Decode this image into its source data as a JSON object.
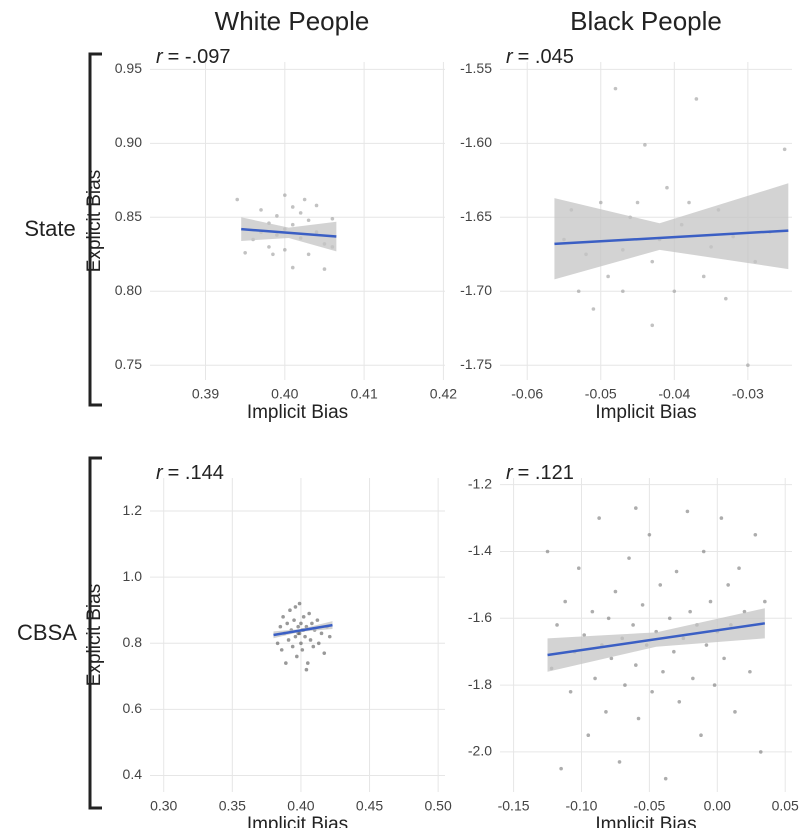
{
  "column_titles": [
    "White People",
    "Black People"
  ],
  "row_labels": [
    "State",
    "CBSA"
  ],
  "chart_data": [
    {
      "type": "scatter",
      "annotation_symbol": "r",
      "annotation": "= -.097",
      "x_label": "Implicit Bias",
      "y_label": "Explicit Bias",
      "xlim": [
        0.383,
        0.4202
      ],
      "ylim": [
        0.74,
        0.955
      ],
      "xticks": [
        0.39,
        {
          "value": 0.4,
          "label": "0.40"
        },
        0.41,
        0.42
      ],
      "yticks": [
        0.75,
        {
          "value": 0.8,
          "label": "0.80"
        },
        0.85,
        {
          "value": 0.9,
          "label": "0.90"
        },
        0.95
      ],
      "grid": true,
      "point_color": "#9a9a9a",
      "x": [
        0.395,
        0.396,
        0.397,
        0.398,
        0.398,
        0.399,
        0.399,
        0.4,
        0.4,
        0.4,
        0.401,
        0.401,
        0.402,
        0.402,
        0.403,
        0.403,
        0.404,
        0.404,
        0.405,
        0.405,
        0.406,
        0.406,
        0.394,
        0.397,
        0.401,
        0.4025,
        0.3985
      ],
      "y": [
        0.826,
        0.835,
        0.84,
        0.83,
        0.846,
        0.851,
        0.838,
        0.865,
        0.842,
        0.828,
        0.857,
        0.845,
        0.836,
        0.853,
        0.848,
        0.825,
        0.858,
        0.84,
        0.815,
        0.832,
        0.849,
        0.83,
        0.862,
        0.855,
        0.816,
        0.862,
        0.825
      ],
      "fit": {
        "color": "#3b5fc4",
        "x": [
          0.3945,
          0.4065
        ],
        "y": [
          0.842,
          0.837
        ]
      },
      "band": {
        "color": "#c4c4c4",
        "x": [
          0.3945,
          0.4005,
          0.4065
        ],
        "lower": [
          0.834,
          0.836,
          0.827
        ],
        "upper": [
          0.85,
          0.843,
          0.847
        ]
      }
    },
    {
      "type": "scatter",
      "annotation_symbol": "r",
      "annotation": "= .045",
      "x_label": "Implicit Bias",
      "xlim": [
        -0.0637,
        -0.024
      ],
      "ylim": [
        -1.76,
        -1.545
      ],
      "xticks": [
        -0.06,
        -0.05,
        -0.04,
        -0.03
      ],
      "yticks": [
        -1.75,
        {
          "value": -1.7,
          "label": "-1.70"
        },
        -1.65,
        {
          "value": -1.6,
          "label": "-1.60"
        },
        -1.55
      ],
      "grid": true,
      "point_color": "#9a9a9a",
      "x": [
        -0.055,
        -0.053,
        -0.052,
        -0.051,
        -0.05,
        -0.049,
        -0.048,
        -0.047,
        -0.046,
        -0.045,
        -0.044,
        -0.043,
        -0.043,
        -0.042,
        -0.041,
        -0.04,
        -0.039,
        -0.038,
        -0.037,
        -0.036,
        -0.035,
        -0.034,
        -0.033,
        -0.032,
        -0.03,
        -0.029,
        -0.027,
        -0.025,
        -0.054,
        -0.047
      ],
      "y": [
        -1.665,
        -1.7,
        -1.675,
        -1.712,
        -1.64,
        -1.69,
        -1.563,
        -1.672,
        -1.65,
        -1.64,
        -1.601,
        -1.68,
        -1.723,
        -1.665,
        -1.63,
        -1.7,
        -1.655,
        -1.64,
        -1.57,
        -1.69,
        -1.67,
        -1.645,
        -1.705,
        -1.663,
        -1.75,
        -1.68,
        -1.66,
        -1.604,
        -1.645,
        -1.7
      ],
      "fit": {
        "color": "#3b5fc4",
        "x": [
          -0.0563,
          -0.0245
        ],
        "y": [
          -1.668,
          -1.659
        ]
      },
      "band": {
        "color": "#c4c4c4",
        "x": [
          -0.0563,
          -0.042,
          -0.0245
        ],
        "lower": [
          -1.692,
          -1.672,
          -1.685
        ],
        "upper": [
          -1.637,
          -1.654,
          -1.627
        ]
      }
    },
    {
      "type": "scatter",
      "annotation_symbol": "r",
      "annotation": "= .144",
      "x_label": "Implicit Bias",
      "y_label": "Explicit Bias",
      "xlim": [
        0.29,
        0.505
      ],
      "ylim": [
        0.35,
        1.3
      ],
      "xticks": [
        {
          "value": 0.3,
          "label": "0.30"
        },
        0.35,
        {
          "value": 0.4,
          "label": "0.40"
        },
        0.45,
        {
          "value": 0.5,
          "label": "0.50"
        }
      ],
      "yticks": [
        0.4,
        0.6,
        0.8,
        {
          "value": 1,
          "label": "1.0"
        },
        1.2
      ],
      "grid": true,
      "point_color": "#555555",
      "x": [
        0.383,
        0.385,
        0.386,
        0.387,
        0.388,
        0.389,
        0.39,
        0.391,
        0.392,
        0.393,
        0.394,
        0.395,
        0.396,
        0.397,
        0.398,
        0.399,
        0.399,
        0.4,
        0.4,
        0.401,
        0.401,
        0.402,
        0.403,
        0.404,
        0.405,
        0.406,
        0.407,
        0.408,
        0.409,
        0.41,
        0.412,
        0.413,
        0.415,
        0.417,
        0.419,
        0.421,
        0.396,
        0.404,
        0.398,
        0.402
      ],
      "y": [
        0.8,
        0.85,
        0.78,
        0.88,
        0.83,
        0.74,
        0.86,
        0.81,
        0.9,
        0.84,
        0.79,
        0.87,
        0.82,
        0.76,
        0.85,
        0.92,
        0.83,
        0.8,
        0.86,
        0.84,
        0.78,
        0.88,
        0.82,
        0.85,
        0.74,
        0.89,
        0.81,
        0.86,
        0.79,
        0.84,
        0.87,
        0.8,
        0.83,
        0.77,
        0.85,
        0.82,
        0.91,
        0.72,
        0.83,
        0.84
      ],
      "fit": {
        "color": "#3b5fc4",
        "x": [
          0.38,
          0.423
        ],
        "y": [
          0.825,
          0.855
        ]
      },
      "band": {
        "color": "#c4c4c4",
        "x": [
          0.38,
          0.4,
          0.423
        ],
        "lower": [
          0.815,
          0.835,
          0.843
        ],
        "upper": [
          0.836,
          0.843,
          0.867
        ]
      }
    },
    {
      "type": "scatter",
      "annotation_symbol": "r",
      "annotation": "= .121",
      "x_label": "Implicit Bias",
      "xlim": [
        -0.16,
        0.055
      ],
      "ylim": [
        -2.12,
        -1.18
      ],
      "xticks": [
        -0.15,
        {
          "value": -0.1,
          "label": "-0.10"
        },
        -0.05,
        {
          "value": 0,
          "label": "0.00"
        },
        0.05
      ],
      "yticks": [
        {
          "value": -2,
          "label": "-2.0"
        },
        -1.8,
        -1.6,
        -1.4,
        -1.2
      ],
      "grid": true,
      "point_color": "#777777",
      "x": [
        -0.125,
        -0.122,
        -0.118,
        -0.115,
        -0.112,
        -0.108,
        -0.105,
        -0.102,
        -0.098,
        -0.095,
        -0.092,
        -0.09,
        -0.087,
        -0.085,
        -0.082,
        -0.08,
        -0.078,
        -0.075,
        -0.072,
        -0.07,
        -0.068,
        -0.065,
        -0.062,
        -0.06,
        -0.058,
        -0.055,
        -0.052,
        -0.05,
        -0.048,
        -0.045,
        -0.042,
        -0.04,
        -0.038,
        -0.035,
        -0.032,
        -0.03,
        -0.028,
        -0.025,
        -0.022,
        -0.02,
        -0.018,
        -0.015,
        -0.012,
        -0.01,
        -0.008,
        -0.005,
        -0.002,
        0,
        0.003,
        0.005,
        0.008,
        0.01,
        0.013,
        0.016,
        0.02,
        0.024,
        0.028,
        0.032,
        0.035,
        -0.06
      ],
      "y": [
        -1.4,
        -1.75,
        -1.62,
        -2.05,
        -1.55,
        -1.82,
        -1.7,
        -1.45,
        -1.65,
        -1.95,
        -1.58,
        -1.78,
        -1.3,
        -1.68,
        -1.88,
        -1.6,
        -1.72,
        -1.52,
        -2.03,
        -1.66,
        -1.8,
        -1.42,
        -1.62,
        -1.74,
        -1.9,
        -1.56,
        -1.68,
        -1.35,
        -1.82,
        -1.64,
        -1.5,
        -1.76,
        -2.08,
        -1.6,
        -1.7,
        -1.46,
        -1.85,
        -1.66,
        -1.28,
        -1.58,
        -1.78,
        -1.62,
        -1.95,
        -1.4,
        -1.68,
        -1.55,
        -1.8,
        -1.64,
        -1.3,
        -1.72,
        -1.5,
        -1.62,
        -1.88,
        -1.45,
        -1.58,
        -1.76,
        -1.35,
        -2,
        -1.55,
        -1.27
      ],
      "fit": {
        "color": "#3b5fc4",
        "x": [
          -0.125,
          0.035
        ],
        "y": [
          -1.71,
          -1.615
        ]
      },
      "band": {
        "color": "#c4c4c4",
        "x": [
          -0.125,
          -0.045,
          0.035
        ],
        "lower": [
          -1.76,
          -1.685,
          -1.66
        ],
        "upper": [
          -1.66,
          -1.642,
          -1.57
        ]
      }
    }
  ]
}
